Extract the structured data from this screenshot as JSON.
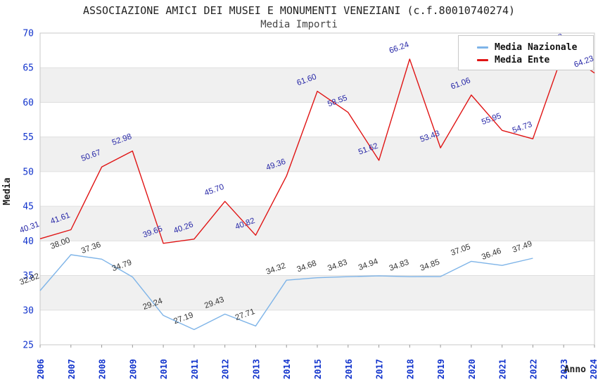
{
  "header": {
    "title": "ASSOCIAZIONE AMICI DEI MUSEI E MONUMENTI VENEZIANI (c.f.80010740274)",
    "subtitle": "Media Importi"
  },
  "chart_data": {
    "type": "line",
    "title": "ASSOCIAZIONE AMICI DEI MUSEI E MONUMENTI VENEZIANI (c.f.80010740274)",
    "subtitle": "Media Importi",
    "xlabel": "Anno",
    "ylabel": "Media",
    "ylim": [
      25,
      70
    ],
    "ytick_step": 5,
    "yticks": [
      25,
      30,
      35,
      40,
      45,
      50,
      55,
      60,
      65,
      70
    ],
    "grid": "horizontal-bands",
    "legend_position": "top-right",
    "categories": [
      "2006",
      "2007",
      "2008",
      "2009",
      "2010",
      "2011",
      "2012",
      "2013",
      "2014",
      "2015",
      "2016",
      "2017",
      "2018",
      "2019",
      "2020",
      "2021",
      "2022",
      "2023",
      "2024"
    ],
    "series": [
      {
        "name": "Media Nazionale",
        "color": "#7EB4E8",
        "label_color": "#333333",
        "values": [
          32.82,
          38.0,
          37.36,
          34.79,
          29.24,
          27.19,
          29.43,
          27.71,
          34.32,
          34.68,
          34.83,
          34.94,
          34.83,
          34.85,
          37.05,
          36.46,
          37.49,
          null,
          null
        ]
      },
      {
        "name": "Media Ente",
        "color": "#E01414",
        "label_color": "#2727A7",
        "values": [
          40.31,
          41.61,
          50.67,
          52.98,
          39.65,
          40.26,
          45.7,
          40.82,
          49.36,
          61.6,
          58.55,
          51.62,
          66.24,
          53.43,
          61.06,
          55.95,
          54.73,
          67.38,
          64.23
        ]
      }
    ],
    "occluded_labels": [
      {
        "series_index": 1,
        "point_index": 17
      }
    ],
    "colors": {
      "axis_tick_text": "#1133CC",
      "band_white": "#FFFFFF",
      "band_gray": "#F0F0F0",
      "grid_line": "#DFDFDF",
      "plot_border": "#C8C8C8",
      "axis_title_text": "#222222",
      "tick_mark": "#999999"
    }
  }
}
